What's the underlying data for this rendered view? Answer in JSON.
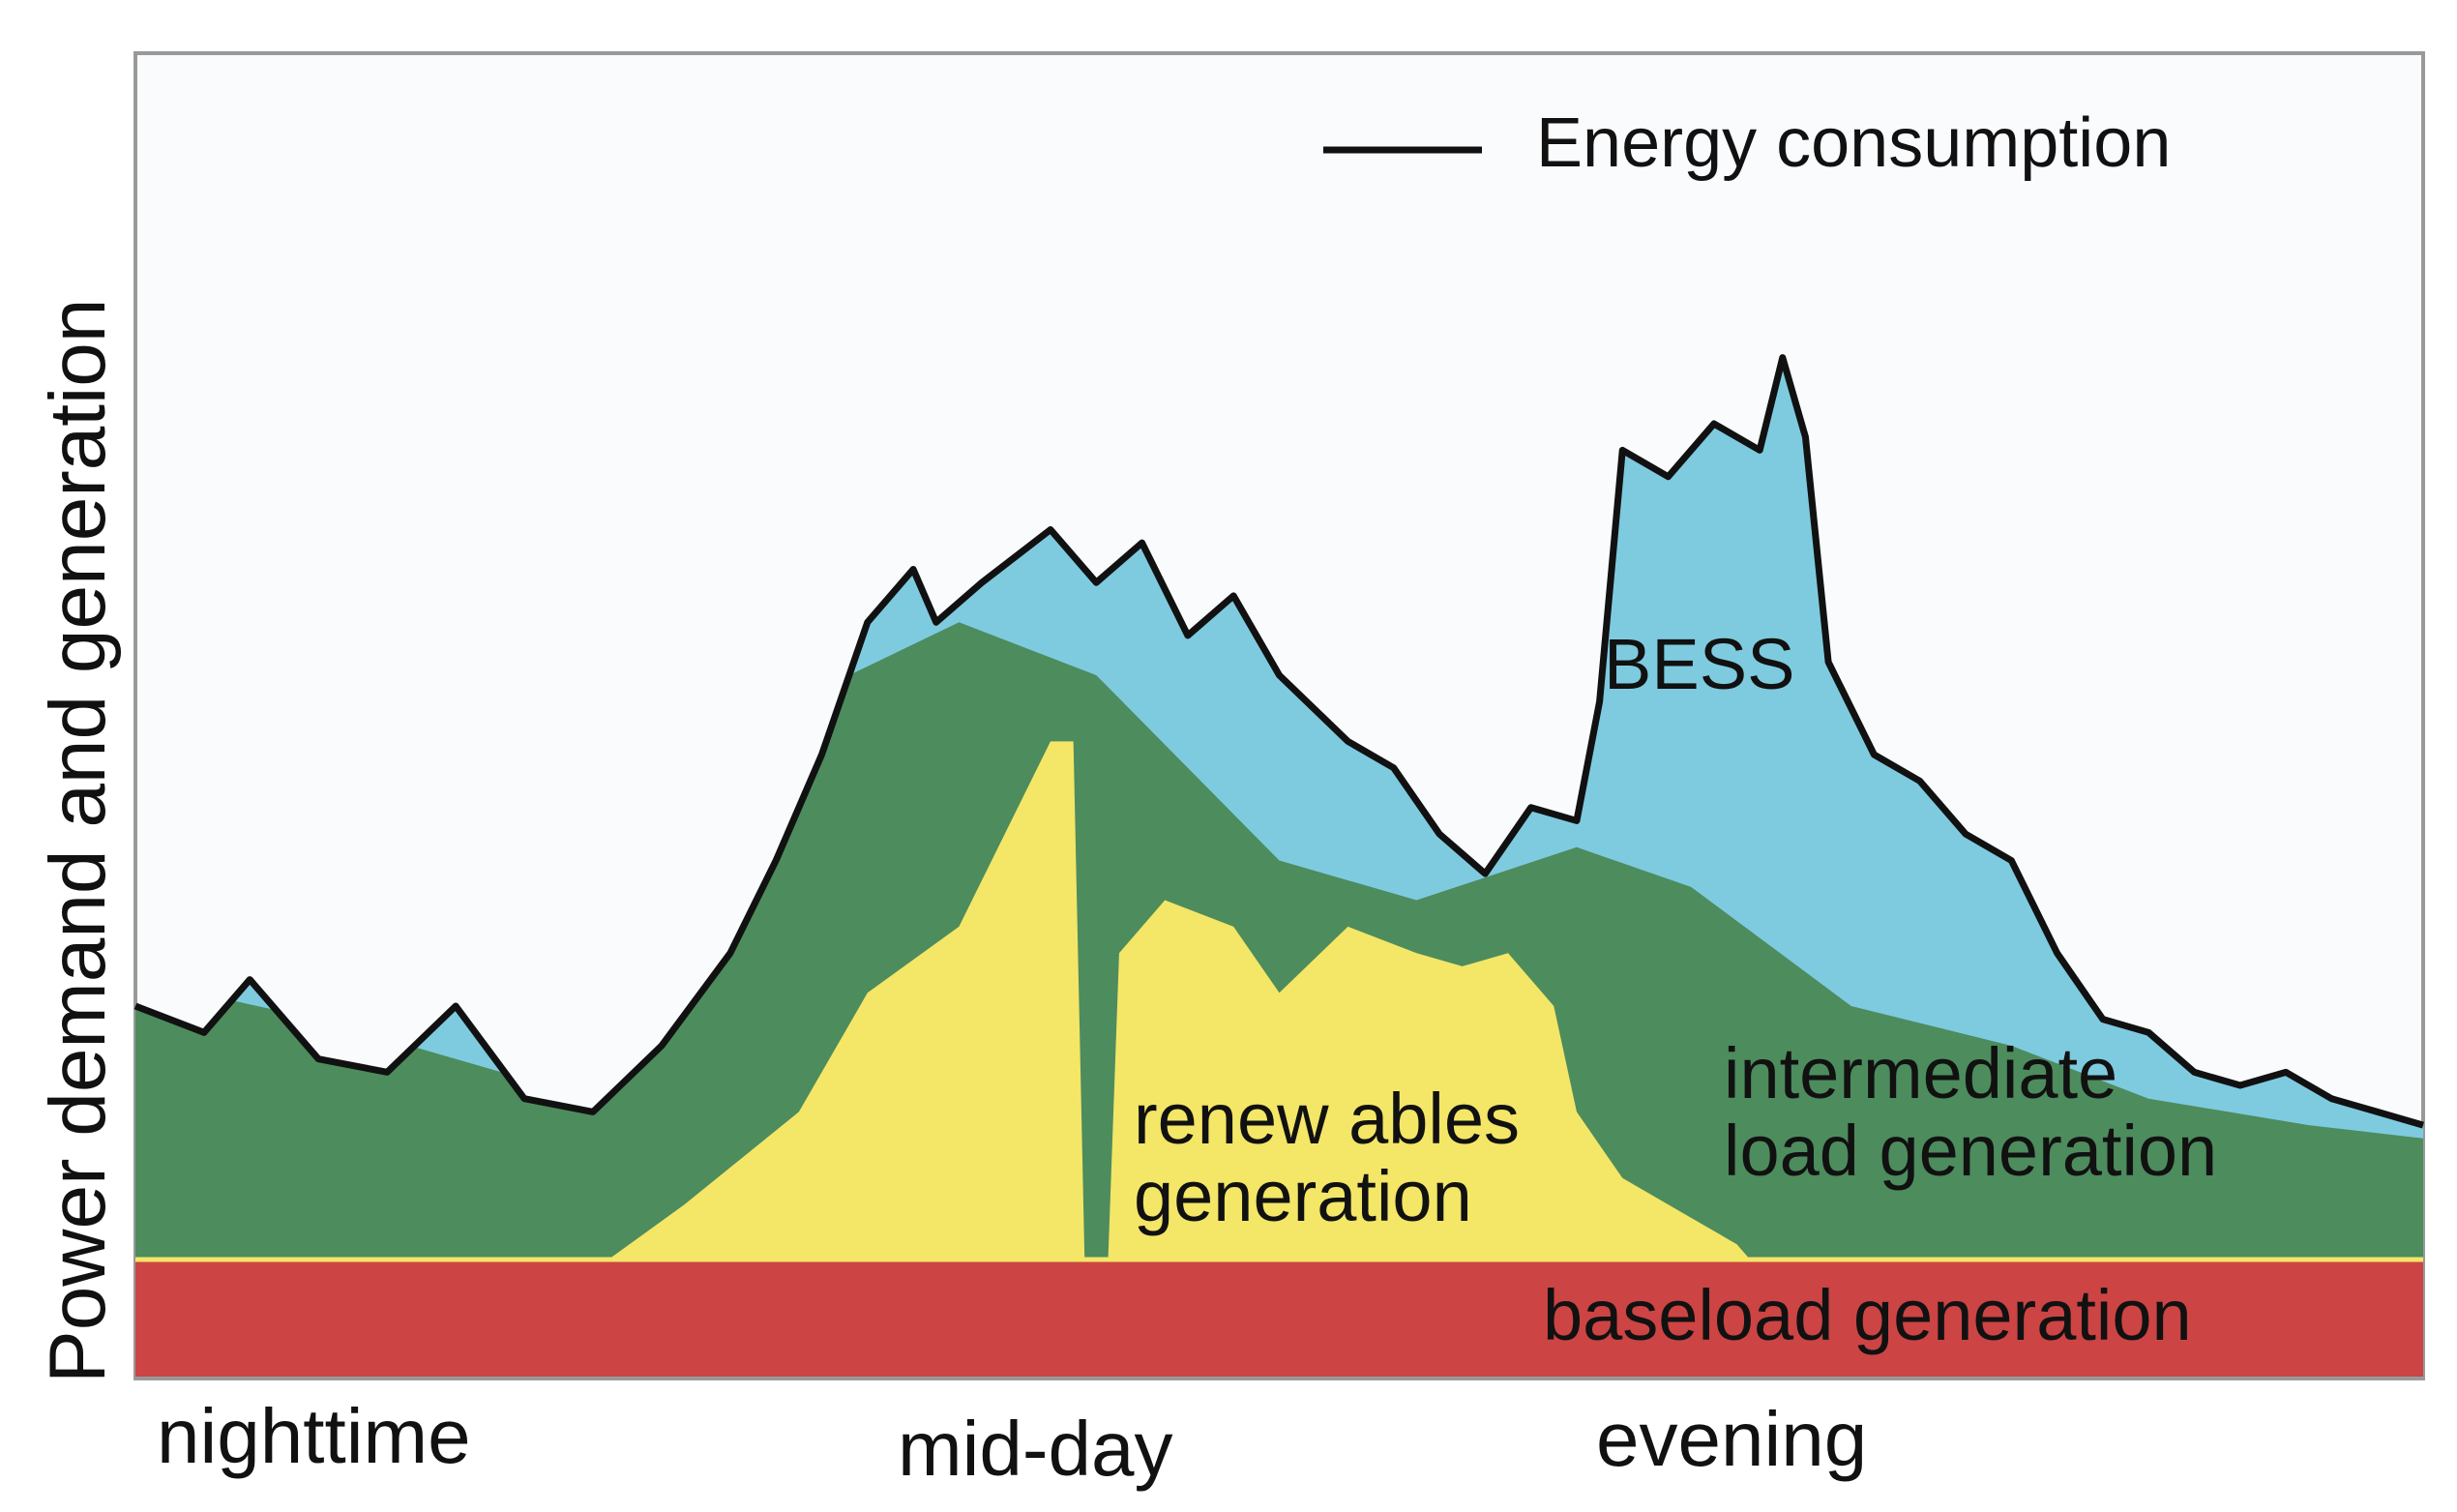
{
  "chart_data": {
    "type": "area",
    "title": "",
    "ylabel": "Power demand and generation",
    "xlabel": "",
    "x_tick_labels": [
      "nighttime",
      "mid-day",
      "evening"
    ],
    "legend": {
      "line_label": "Energy consumption",
      "placement": "top-right"
    },
    "ylim": [
      0,
      100
    ],
    "series": [
      {
        "name": "baseload generation",
        "color": "#cc4444",
        "level": 8
      },
      {
        "name": "intermediate load generation",
        "color": "#4d8c5d",
        "profile": [
          [
            0,
            30
          ],
          [
            8,
            27
          ],
          [
            16,
            23
          ],
          [
            20,
            22
          ],
          [
            25,
            35
          ],
          [
            30,
            52
          ],
          [
            36,
            57
          ],
          [
            42,
            53
          ],
          [
            50,
            39
          ],
          [
            56,
            36
          ],
          [
            63,
            40
          ],
          [
            68,
            37
          ],
          [
            75,
            28
          ],
          [
            82,
            25
          ],
          [
            88,
            21
          ],
          [
            95,
            19
          ],
          [
            100,
            18
          ]
        ]
      },
      {
        "name": "BESS",
        "color": "#7ecbe0"
      },
      {
        "name": "renew ables\ngeneration",
        "color": "#f4e667",
        "profile": [
          [
            20,
            8
          ],
          [
            24,
            13
          ],
          [
            29,
            20
          ],
          [
            32,
            29
          ],
          [
            36,
            34
          ],
          [
            38,
            41
          ],
          [
            40,
            48
          ],
          [
            41,
            48
          ],
          [
            41.5,
            8
          ],
          [
            42.5,
            8
          ],
          [
            43,
            32
          ],
          [
            45,
            36
          ],
          [
            48,
            34
          ],
          [
            50,
            29
          ],
          [
            53,
            34
          ],
          [
            56,
            32
          ],
          [
            58,
            31
          ],
          [
            60,
            32
          ],
          [
            62,
            28
          ],
          [
            63,
            20
          ],
          [
            65,
            15
          ],
          [
            68,
            12
          ],
          [
            70,
            10
          ],
          [
            71,
            8
          ]
        ]
      }
    ],
    "consumption_line": [
      [
        0,
        28
      ],
      [
        3,
        26
      ],
      [
        5,
        30
      ],
      [
        8,
        24
      ],
      [
        11,
        23
      ],
      [
        14,
        28
      ],
      [
        17,
        21
      ],
      [
        20,
        20
      ],
      [
        23,
        25
      ],
      [
        26,
        32
      ],
      [
        28,
        39
      ],
      [
        30,
        47
      ],
      [
        32,
        57
      ],
      [
        34,
        61
      ],
      [
        35,
        57
      ],
      [
        37,
        60
      ],
      [
        40,
        64
      ],
      [
        42,
        60
      ],
      [
        44,
        63
      ],
      [
        46,
        56
      ],
      [
        48,
        59
      ],
      [
        50,
        53
      ],
      [
        53,
        48
      ],
      [
        55,
        46
      ],
      [
        57,
        41
      ],
      [
        59,
        38
      ],
      [
        61,
        43
      ],
      [
        63,
        42
      ],
      [
        64,
        51
      ],
      [
        65,
        70
      ],
      [
        67,
        68
      ],
      [
        69,
        72
      ],
      [
        71,
        70
      ],
      [
        72,
        77
      ],
      [
        73,
        71
      ],
      [
        74,
        54
      ],
      [
        76,
        47
      ],
      [
        78,
        45
      ],
      [
        80,
        41
      ],
      [
        82,
        39
      ],
      [
        84,
        32
      ],
      [
        86,
        27
      ],
      [
        88,
        26
      ],
      [
        90,
        23
      ],
      [
        92,
        22
      ],
      [
        94,
        23
      ],
      [
        96,
        21
      ],
      [
        98,
        20
      ],
      [
        100,
        19
      ]
    ]
  },
  "labels": {
    "legend": "Energy consumption",
    "bess": "BESS",
    "renewables_line1": "renew ables",
    "renewables_line2": "generation",
    "intermediate_line1": "intermediate",
    "intermediate_line2": "load generation",
    "baseload": "baseload generation",
    "yaxis": "Power demand and generation",
    "xtick_night": "nighttime",
    "xtick_mid": "mid-day",
    "xtick_evening": "evening"
  }
}
